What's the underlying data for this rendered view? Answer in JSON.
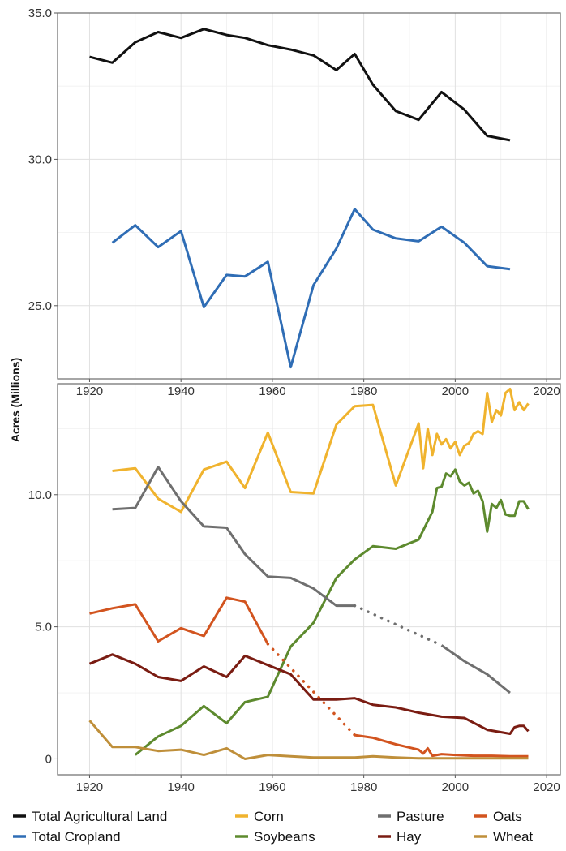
{
  "ylabel": "Acres (Millions)",
  "colors": {
    "total_ag": "#111111",
    "total_crop": "#2f6db5",
    "corn": "#f0b32e",
    "soybeans": "#5d8a2e",
    "pasture": "#6f6f6f",
    "hay": "#7a1c12",
    "oats": "#d2541f",
    "wheat": "#bf8f3a"
  },
  "chart_data": [
    {
      "type": "line",
      "xlim": [
        1913,
        2023
      ],
      "ylim": [
        22.5,
        35.0
      ],
      "xticks": [
        "1920",
        "1940",
        "1960",
        "1980",
        "2000",
        "2020"
      ],
      "yticks": [
        "25.0",
        "30.0",
        "35.0"
      ],
      "grid": true,
      "series": [
        {
          "name": "Total Agricultural Land",
          "color": "#111111",
          "x": [
            1920,
            1925,
            1930,
            1935,
            1940,
            1945,
            1950,
            1954,
            1959,
            1964,
            1969,
            1974,
            1978,
            1982,
            1987,
            1992,
            1997,
            2002,
            2007,
            2012
          ],
          "y": [
            33.5,
            33.3,
            34.0,
            34.35,
            34.15,
            34.45,
            34.25,
            34.15,
            33.9,
            33.75,
            33.55,
            33.05,
            33.6,
            32.55,
            31.65,
            31.35,
            32.3,
            31.7,
            30.8,
            30.65
          ]
        },
        {
          "name": "Total Cropland",
          "color": "#2f6db5",
          "x": [
            1925,
            1930,
            1935,
            1940,
            1945,
            1950,
            1954,
            1959,
            1964,
            1969,
            1974,
            1978,
            1982,
            1987,
            1992,
            1997,
            2002,
            2007,
            2012
          ],
          "y": [
            27.15,
            27.75,
            27.0,
            27.55,
            24.95,
            26.05,
            26.0,
            26.5,
            22.9,
            25.7,
            26.95,
            28.3,
            27.6,
            27.3,
            27.2,
            27.7,
            27.15,
            26.35,
            26.25
          ]
        }
      ]
    },
    {
      "type": "line",
      "xlim": [
        1913,
        2023
      ],
      "ylim": [
        -0.6,
        14.2
      ],
      "xticks": [
        "1920",
        "1940",
        "1960",
        "1980",
        "2000",
        "2020"
      ],
      "yticks": [
        "0",
        "5.0",
        "10.0"
      ],
      "grid": true,
      "legend_position": "bottom",
      "series": [
        {
          "name": "Corn",
          "color": "#f0b32e",
          "x": [
            1925,
            1930,
            1935,
            1940,
            1945,
            1950,
            1954,
            1959,
            1964,
            1969,
            1974,
            1978,
            1982,
            1987,
            1992,
            1993,
            1994,
            1995,
            1996,
            1997,
            1998,
            1999,
            2000,
            2001,
            2002,
            2003,
            2004,
            2005,
            2006,
            2007,
            2008,
            2009,
            2010,
            2011,
            2012,
            2013,
            2014,
            2015,
            2016
          ],
          "y": [
            10.9,
            11.0,
            9.85,
            9.35,
            10.95,
            11.25,
            10.25,
            12.35,
            10.1,
            10.05,
            12.65,
            13.35,
            13.4,
            10.35,
            12.7,
            11.0,
            12.5,
            11.5,
            12.3,
            11.9,
            12.1,
            11.75,
            12.0,
            11.5,
            11.85,
            11.95,
            12.3,
            12.4,
            12.3,
            13.85,
            12.75,
            13.2,
            13.0,
            13.85,
            14.0,
            13.2,
            13.5,
            13.2,
            13.45
          ]
        },
        {
          "name": "Soybeans",
          "color": "#5d8a2e",
          "x": [
            1930,
            1935,
            1940,
            1945,
            1950,
            1954,
            1959,
            1964,
            1969,
            1974,
            1978,
            1982,
            1987,
            1992,
            1994,
            1995,
            1996,
            1997,
            1998,
            1999,
            2000,
            2001,
            2002,
            2003,
            2004,
            2005,
            2006,
            2007,
            2008,
            2009,
            2010,
            2011,
            2012,
            2013,
            2014,
            2015,
            2016
          ],
          "y": [
            0.15,
            0.85,
            1.25,
            2.0,
            1.35,
            2.15,
            2.35,
            4.25,
            5.15,
            6.85,
            7.55,
            8.05,
            7.95,
            8.3,
            9.0,
            9.35,
            10.25,
            10.3,
            10.8,
            10.7,
            10.95,
            10.5,
            10.35,
            10.45,
            10.05,
            10.15,
            9.75,
            8.6,
            9.65,
            9.5,
            9.8,
            9.25,
            9.2,
            9.2,
            9.75,
            9.75,
            9.45
          ]
        },
        {
          "name": "Pasture",
          "color": "#6f6f6f",
          "x": [
            1925,
            1930,
            1935,
            1940,
            1945,
            1950,
            1954,
            1959,
            1964,
            1969,
            1974,
            1978
          ],
          "y": [
            9.45,
            9.5,
            11.05,
            9.75,
            8.8,
            8.75,
            7.75,
            6.9,
            6.85,
            6.45,
            5.8,
            5.8
          ]
        },
        {
          "name": "Pasture (estimated)",
          "color": "#6f6f6f",
          "dashed": true,
          "x": [
            1978,
            1997
          ],
          "y": [
            5.8,
            4.3
          ]
        },
        {
          "name": "Pasture (recent)",
          "color": "#6f6f6f",
          "x": [
            1997,
            2002,
            2007,
            2012
          ],
          "y": [
            4.3,
            3.7,
            3.2,
            2.5
          ]
        },
        {
          "name": "Hay",
          "color": "#7a1c12",
          "x": [
            1920,
            1925,
            1930,
            1935,
            1940,
            1945,
            1950,
            1954,
            1959,
            1964,
            1969,
            1974,
            1978,
            1982,
            1987,
            1992,
            1997,
            2002,
            2007,
            2012,
            2013,
            2014,
            2015,
            2016
          ],
          "y": [
            3.6,
            3.95,
            3.6,
            3.1,
            2.95,
            3.5,
            3.1,
            3.9,
            3.55,
            3.2,
            2.25,
            2.25,
            2.3,
            2.05,
            1.95,
            1.75,
            1.6,
            1.55,
            1.1,
            0.95,
            1.2,
            1.25,
            1.25,
            1.05
          ]
        },
        {
          "name": "Oats",
          "color": "#d2541f",
          "x": [
            1920,
            1925,
            1930,
            1935,
            1940,
            1945,
            1950,
            1954,
            1959
          ],
          "y": [
            5.5,
            5.7,
            5.85,
            4.45,
            4.95,
            4.65,
            6.1,
            5.95,
            4.35
          ]
        },
        {
          "name": "Oats (estimated)",
          "color": "#d2541f",
          "dashed": true,
          "x": [
            1959,
            1978
          ],
          "y": [
            4.35,
            0.9
          ]
        },
        {
          "name": "Oats (recent)",
          "color": "#d2541f",
          "x": [
            1978,
            1982,
            1987,
            1992,
            1993,
            1994,
            1995,
            1996,
            1997,
            2000,
            2004,
            2008,
            2012,
            2016
          ],
          "y": [
            0.9,
            0.8,
            0.55,
            0.35,
            0.2,
            0.4,
            0.12,
            0.15,
            0.18,
            0.15,
            0.12,
            0.12,
            0.1,
            0.1
          ]
        },
        {
          "name": "Wheat",
          "color": "#bf8f3a",
          "x": [
            1920,
            1925,
            1930,
            1935,
            1940,
            1945,
            1950,
            1954,
            1959,
            1964,
            1969,
            1974,
            1978,
            1982,
            1987,
            1992,
            1997,
            2002,
            2007,
            2012,
            2016
          ],
          "y": [
            1.45,
            0.45,
            0.45,
            0.3,
            0.35,
            0.15,
            0.4,
            0.0,
            0.15,
            0.1,
            0.05,
            0.05,
            0.05,
            0.1,
            0.05,
            0.02,
            0.02,
            0.02,
            0.02,
            0.02,
            0.02
          ]
        }
      ]
    }
  ],
  "legend": [
    {
      "label": "Total Agricultural Land",
      "color": "#111111"
    },
    {
      "label": "Corn",
      "color": "#f0b32e"
    },
    {
      "label": "Pasture",
      "color": "#6f6f6f"
    },
    {
      "label": "Oats",
      "color": "#d2541f"
    },
    {
      "label": "Total Cropland",
      "color": "#2f6db5"
    },
    {
      "label": "Soybeans",
      "color": "#5d8a2e"
    },
    {
      "label": "Hay",
      "color": "#7a1c12"
    },
    {
      "label": "Wheat",
      "color": "#bf8f3a"
    }
  ]
}
